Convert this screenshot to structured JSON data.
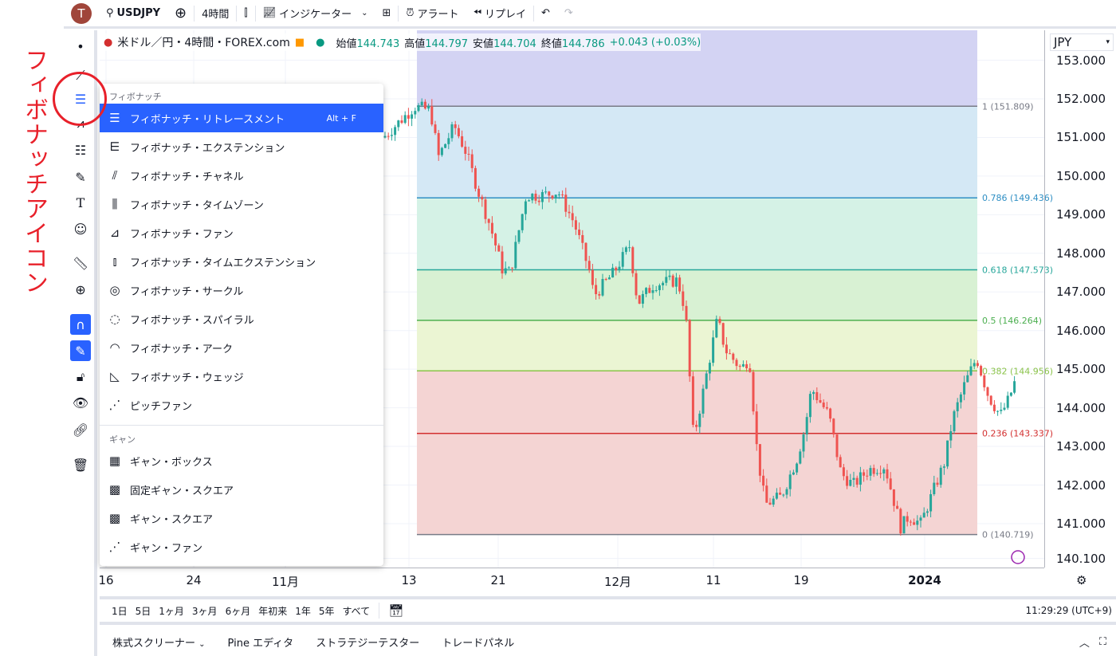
{
  "toolbar": {
    "avatar": "T",
    "symbol": "USDJPY",
    "interval": "4時間",
    "indicators": "インジケーター",
    "alert": "アラート",
    "replay": "リプレイ",
    "icons": [
      "search-icon",
      "plus-circle-icon",
      "candles-icon",
      "indicator-icon",
      "layout-grid-icon",
      "alarm-icon",
      "replay-icon",
      "undo-icon",
      "redo-icon"
    ]
  },
  "legend": {
    "title": "米ドル／円・4時間・FOREX.com",
    "open_label": "始値",
    "open": "144.743",
    "high_label": "高値",
    "high": "144.797",
    "low_label": "安値",
    "low": "144.704",
    "close_label": "終値",
    "close": "144.786",
    "change": "+0.043 (+0.03%)"
  },
  "price_axis": {
    "currency": "JPY",
    "labels": [
      "153.000",
      "152.000",
      "151.000",
      "150.000",
      "149.000",
      "148.000",
      "147.000",
      "146.000",
      "145.000",
      "144.000",
      "143.000",
      "142.000",
      "141.000",
      "140.100"
    ]
  },
  "time_axis": {
    "labels": [
      "16",
      "24",
      "11月",
      "13",
      "21",
      "12月",
      "11",
      "19",
      "2024"
    ]
  },
  "fib_levels": [
    {
      "label": "1 (151.809)",
      "price": 151.809,
      "color": "#787b86",
      "fill": "#e6e6e6"
    },
    {
      "label": "0.786 (149.436)",
      "price": 149.436,
      "color": "#2f8fc4",
      "fill": "#d4e8f5"
    },
    {
      "label": "0.618 (147.573)",
      "price": 147.573,
      "color": "#26a69a",
      "fill": "#d5f2e6"
    },
    {
      "label": "0.5 (146.264)",
      "price": 146.264,
      "color": "#4caf50",
      "fill": "#d8f1d3"
    },
    {
      "label": "0.382 (144.956)",
      "price": 144.956,
      "color": "#8bc34a",
      "fill": "#ebf5d3"
    },
    {
      "label": "0.236 (143.337)",
      "price": 143.337,
      "color": "#d32f2f",
      "fill": "#f4d4d3"
    },
    {
      "label": "0 (140.719)",
      "price": 140.719,
      "color": "#787b86",
      "fill": "#f4d4d3"
    }
  ],
  "colors": {
    "up": "#26a69a",
    "down": "#ef5350",
    "accent": "#2962ff",
    "annotation": "#e8202a",
    "above_fib": "#d3d3f3"
  },
  "menu": {
    "fib_header": "フィボナッチ",
    "fib_items": [
      {
        "label": "フィボナッチ・リトレースメント",
        "shortcut": "Alt + F",
        "icon": "fib-retracement-icon"
      },
      {
        "label": "フィボナッチ・エクステンション",
        "icon": "fib-extension-icon"
      },
      {
        "label": "フィボナッチ・チャネル",
        "icon": "fib-channel-icon"
      },
      {
        "label": "フィボナッチ・タイムゾーン",
        "icon": "fib-timezone-icon"
      },
      {
        "label": "フィボナッチ・ファン",
        "icon": "fib-fan-icon"
      },
      {
        "label": "フィボナッチ・タイムエクステンション",
        "icon": "fib-time-extension-icon"
      },
      {
        "label": "フィボナッチ・サークル",
        "icon": "fib-circle-icon"
      },
      {
        "label": "フィボナッチ・スパイラル",
        "icon": "fib-spiral-icon"
      },
      {
        "label": "フィボナッチ・アーク",
        "icon": "fib-arc-icon"
      },
      {
        "label": "フィボナッチ・ウェッジ",
        "icon": "fib-wedge-icon"
      },
      {
        "label": "ピッチファン",
        "icon": "pitchfan-icon"
      }
    ],
    "gann_header": "ギャン",
    "gann_items": [
      {
        "label": "ギャン・ボックス",
        "icon": "gann-box-icon"
      },
      {
        "label": "固定ギャン・スクエア",
        "icon": "gann-square-fixed-icon"
      },
      {
        "label": "ギャン・スクエア",
        "icon": "gann-square-icon"
      },
      {
        "label": "ギャン・ファン",
        "icon": "gann-fan-icon"
      }
    ]
  },
  "range_bar": {
    "ranges": [
      "1日",
      "5日",
      "1ヶ月",
      "3ヶ月",
      "6ヶ月",
      "年初来",
      "1年",
      "5年",
      "すべて"
    ],
    "time": "11:29:29 (UTC+9)"
  },
  "bottom_panel": {
    "tabs": [
      "株式スクリーナー",
      "Pine エディタ",
      "ストラテジーテスター",
      "トレードパネル"
    ]
  },
  "annotation": {
    "text": "フィボナッチアイコン"
  }
}
